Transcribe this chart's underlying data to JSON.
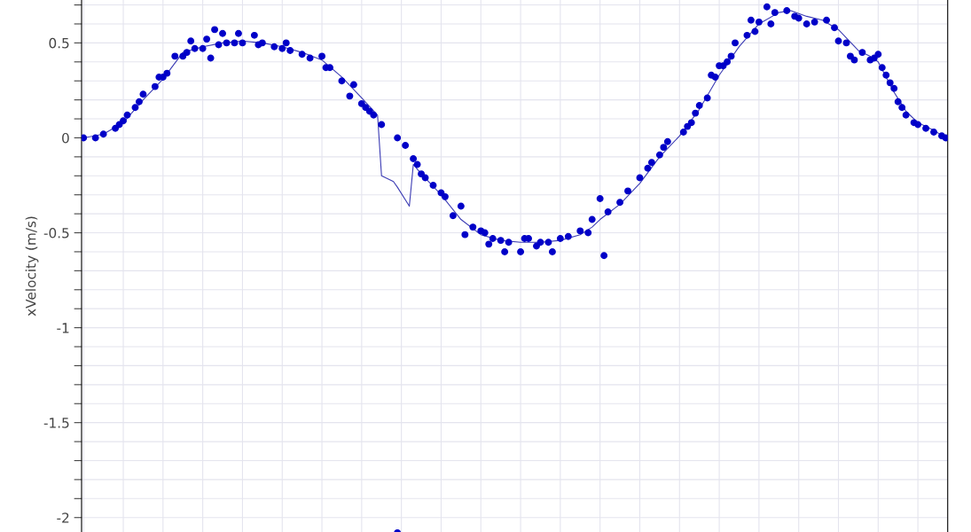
{
  "chart_data": {
    "type": "scatter",
    "ylabel": "xVelocity (m/s)",
    "ylim": [
      -2.09,
      0.74
    ],
    "categories": [
      null,
      null,
      null,
      null,
      null,
      null,
      null,
      null,
      null,
      null,
      null,
      null,
      null,
      null,
      null,
      null,
      null,
      null,
      null,
      null,
      null,
      null,
      null,
      null,
      null,
      null,
      null,
      null,
      null,
      null,
      null,
      null,
      null,
      null,
      null,
      null,
      null,
      null,
      null,
      null,
      null,
      null,
      null,
      null,
      null,
      null,
      null,
      null,
      null,
      null,
      null,
      null,
      null,
      null,
      null,
      null,
      null,
      null,
      null,
      null,
      null,
      null,
      null,
      null,
      null,
      null,
      null,
      null,
      null,
      null,
      null,
      null,
      null,
      null,
      null,
      null,
      null,
      null,
      null,
      null,
      null,
      null,
      null,
      null,
      null,
      null,
      null,
      null,
      null,
      null,
      null,
      null,
      null,
      null,
      null,
      null,
      null,
      null,
      null,
      null,
      null,
      null,
      null,
      null,
      null,
      null,
      null,
      null,
      null,
      null,
      null,
      null,
      null,
      null,
      null,
      null,
      null,
      null,
      null,
      null,
      null,
      null,
      null,
      null,
      null,
      null,
      null,
      null,
      null,
      null,
      null,
      null,
      null,
      null,
      null,
      null,
      null,
      null,
      null,
      null,
      null,
      null,
      null,
      null,
      null,
      null,
      null,
      null,
      null,
      null,
      null,
      null,
      null,
      null,
      null,
      null,
      null,
      null,
      null,
      null,
      null,
      null,
      null,
      null,
      null,
      null,
      null,
      null,
      null,
      null,
      null,
      null,
      null,
      null,
      null,
      null,
      null,
      null,
      null,
      null,
      null,
      null,
      null,
      null,
      null,
      null,
      null,
      null,
      null,
      null,
      null,
      null,
      null,
      null,
      null,
      null,
      null,
      null,
      null,
      null,
      null,
      null,
      null,
      null,
      null,
      null,
      null,
      null,
      null,
      null,
      null,
      null,
      null,
      null,
      null,
      null,
      null,
      null
    ],
    "yticks": [
      {
        "value": -2,
        "label": "-2"
      },
      {
        "value": -1.9,
        "label": null
      },
      {
        "value": -1.8,
        "label": null
      },
      {
        "value": -1.7,
        "label": null
      },
      {
        "value": -1.6,
        "label": null
      },
      {
        "value": -1.5,
        "label": "-1.5"
      },
      {
        "value": -1.4,
        "label": null
      },
      {
        "value": -1.3,
        "label": null
      },
      {
        "value": -1.2,
        "label": null
      },
      {
        "value": -1.1,
        "label": null
      },
      {
        "value": -1,
        "label": "-1"
      },
      {
        "value": -0.9,
        "label": null
      },
      {
        "value": -0.8,
        "label": null
      },
      {
        "value": -0.7,
        "label": null
      },
      {
        "value": -0.6,
        "label": null
      },
      {
        "value": -0.5,
        "label": "-0.5"
      },
      {
        "value": -0.4,
        "label": null
      },
      {
        "value": -0.3,
        "label": null
      },
      {
        "value": -0.2,
        "label": null
      },
      {
        "value": -0.1,
        "label": null
      },
      0,
      {
        "value": 0.1,
        "label": null
      },
      {
        "value": 0.2,
        "label": null
      },
      {
        "value": 0.3,
        "label": null
      },
      {
        "value": 0.4,
        "label": null
      },
      {
        "value": 0.5,
        "label": "0.5"
      },
      {
        "value": 0.6,
        "label": null
      },
      {
        "value": 0.7,
        "label": null
      }
    ],
    "tick_labels": "y",
    "grid": true,
    "marker": "circle",
    "series": [
      {
        "color": "#0000c8",
        "values": [
          0.0,
          null,
          null,
          0.0,
          null,
          0.02,
          null,
          null,
          0.05,
          0.07,
          0.09,
          0.12,
          null,
          0.16,
          0.19,
          0.23,
          null,
          null,
          0.27,
          0.32,
          0.32,
          0.34,
          null,
          0.43,
          null,
          0.43,
          0.45,
          0.51,
          0.47,
          null,
          0.47,
          0.52,
          0.42,
          0.57,
          0.49,
          0.55,
          0.5,
          null,
          0.5,
          0.55,
          0.5,
          null,
          null,
          0.54,
          0.49,
          0.5,
          null,
          null,
          0.48,
          null,
          0.47,
          0.5,
          0.46,
          null,
          null,
          0.44,
          null,
          0.42,
          null,
          null,
          0.43,
          0.37,
          0.37,
          null,
          null,
          0.3,
          null,
          0.22,
          0.28,
          null,
          0.18,
          0.16,
          0.14,
          0.12,
          null,
          0.07,
          null,
          null,
          null,
          0.0,
          null,
          -0.04,
          null,
          -0.11,
          -0.14,
          -0.19,
          -0.21,
          null,
          -0.25,
          null,
          -0.29,
          -0.31,
          null,
          -0.41,
          null,
          -0.36,
          -0.51,
          null,
          -0.47,
          null,
          -0.49,
          -0.5,
          -0.56,
          -0.53,
          null,
          -0.54,
          -0.6,
          -0.55,
          null,
          null,
          -0.6,
          -0.53,
          -0.53,
          null,
          -0.57,
          -0.55,
          null,
          -0.55,
          -0.6,
          null,
          -0.53,
          null,
          -0.52,
          null,
          null,
          -0.49,
          null,
          -0.5,
          -0.43,
          null,
          -0.32,
          -0.62,
          -0.39,
          null,
          null,
          -0.34,
          null,
          -0.28,
          null,
          null,
          -0.21,
          null,
          -0.16,
          -0.13,
          null,
          -0.09,
          -0.05,
          -0.02,
          null,
          null,
          null,
          0.03,
          0.06,
          0.08,
          0.13,
          0.17,
          null,
          0.21,
          0.33,
          0.32,
          0.38,
          0.38,
          0.4,
          0.43,
          0.5,
          null,
          null,
          0.54,
          0.62,
          0.56,
          0.61,
          null,
          0.69,
          0.6,
          0.66,
          null,
          null,
          0.67,
          null,
          0.64,
          0.63,
          null,
          0.6,
          null,
          0.61,
          null,
          null,
          0.62,
          null,
          0.58,
          0.51,
          null,
          0.5,
          0.43,
          0.41,
          null,
          0.45,
          null,
          0.41,
          0.42,
          0.44,
          0.37,
          0.33,
          0.29,
          0.26,
          0.19,
          0.16,
          0.12,
          null,
          0.08,
          0.07,
          null,
          0.05,
          null,
          0.03,
          null,
          0.01,
          0.0
        ]
      },
      {
        "color": "#0000c8",
        "values": [
          null,
          null,
          null,
          null,
          null,
          null,
          null,
          null,
          null,
          null,
          null,
          null,
          null,
          null,
          null,
          null,
          null,
          null,
          null,
          null,
          null,
          null,
          null,
          null,
          null,
          null,
          null,
          null,
          null,
          null,
          null,
          null,
          null,
          null,
          null,
          null,
          null,
          null,
          null,
          null,
          null,
          null,
          null,
          null,
          null,
          null,
          null,
          null,
          null,
          null,
          null,
          null,
          null,
          null,
          null,
          null,
          null,
          null,
          null,
          null,
          null,
          null,
          null,
          null,
          null,
          null,
          null,
          null,
          null,
          null,
          null,
          null,
          null,
          null,
          null,
          null,
          null,
          null,
          null,
          -2.08,
          null,
          null,
          null,
          null,
          null,
          null,
          null,
          null,
          null,
          null,
          null,
          null,
          null,
          null,
          null,
          null,
          null,
          null,
          null,
          null,
          null,
          null,
          null,
          null,
          null,
          null,
          null,
          null,
          null,
          null,
          null,
          null,
          null,
          null,
          null,
          null,
          null,
          null,
          null,
          null,
          null,
          null,
          null,
          null,
          null,
          null,
          null,
          null,
          null,
          null,
          null,
          null,
          null,
          null,
          null,
          null,
          null,
          null,
          null,
          null,
          null,
          null,
          null,
          null,
          null,
          null,
          null,
          null,
          null,
          null,
          null,
          null,
          null,
          null,
          null,
          null,
          null,
          null,
          null,
          null,
          null,
          null,
          null,
          null,
          null,
          null,
          null,
          null,
          null,
          null,
          null,
          null,
          null,
          null,
          null,
          null,
          null,
          null,
          null,
          null,
          null,
          null,
          null,
          null,
          null,
          null,
          null,
          null,
          null,
          null,
          null,
          null,
          null,
          null,
          null,
          null,
          null,
          null,
          null,
          null,
          null,
          null,
          null,
          null,
          null,
          null,
          null,
          null,
          null,
          null,
          null,
          null,
          null,
          null,
          null,
          null,
          null,
          null
        ]
      },
      {
        "type": "line",
        "color": "#3c3cb4",
        "marker": "none",
        "values": [
          0,
          null,
          null,
          null,
          null,
          0.02,
          null,
          null,
          null,
          null,
          0.08,
          null,
          null,
          null,
          null,
          0.2,
          null,
          null,
          null,
          null,
          0.31,
          null,
          null,
          null,
          null,
          0.45,
          null,
          null,
          null,
          null,
          0.48,
          null,
          null,
          null,
          null,
          0.5,
          null,
          null,
          null,
          null,
          0.51,
          null,
          null,
          null,
          null,
          0.5,
          null,
          null,
          null,
          null,
          0.48,
          null,
          null,
          null,
          null,
          0.45,
          null,
          null,
          null,
          null,
          0.41,
          null,
          null,
          null,
          null,
          0.32,
          null,
          null,
          null,
          null,
          0.21,
          null,
          null,
          null,
          0.12,
          -0.2,
          null,
          null,
          -0.23,
          -0.26,
          null,
          null,
          -0.36,
          -0.14,
          null,
          -0.19,
          null,
          null,
          null,
          null,
          -0.3,
          null,
          null,
          null,
          null,
          -0.43,
          null,
          null,
          null,
          null,
          -0.51,
          null,
          null,
          null,
          null,
          -0.54,
          null,
          null,
          null,
          null,
          -0.55,
          null,
          null,
          null,
          null,
          -0.55,
          null,
          null,
          null,
          null,
          -0.54,
          null,
          null,
          null,
          null,
          -0.51,
          null,
          null,
          -0.47,
          null,
          -0.43,
          null,
          null,
          null,
          null,
          -0.35,
          null,
          null,
          null,
          null,
          -0.24,
          null,
          null,
          null,
          null,
          -0.1,
          null,
          null,
          null,
          null,
          0.01,
          null,
          null,
          null,
          null,
          0.15,
          null,
          null,
          null,
          null,
          0.33,
          null,
          null,
          null,
          null,
          0.48,
          null,
          null,
          null,
          null,
          0.6,
          null,
          null,
          null,
          null,
          0.66,
          null,
          null,
          0.67,
          null,
          null,
          null,
          0.64,
          null,
          null,
          null,
          0.62,
          null,
          null,
          null,
          0.57,
          null,
          null,
          null,
          null,
          0.46,
          null,
          null,
          0.43,
          null,
          0.4,
          null,
          null,
          null,
          0.24,
          null,
          null,
          0.14,
          null,
          null,
          0.08,
          null,
          null,
          null,
          0.04,
          null,
          null,
          0.0
        ]
      }
    ]
  }
}
